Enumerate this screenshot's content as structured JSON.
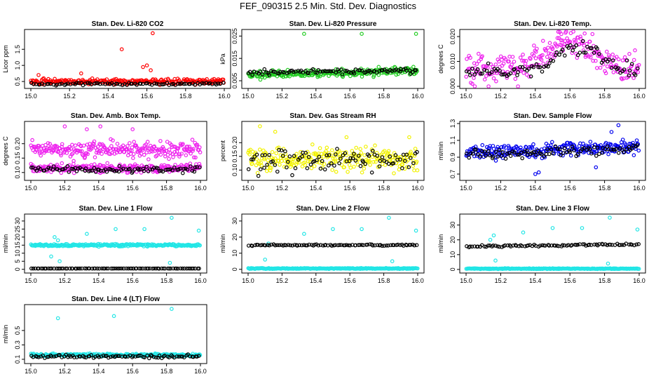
{
  "figure_title": "FEF_090315  2.5 Min. Std. Dev. Diagnostics",
  "colors": {
    "black": "#000000",
    "red": "#ff0000",
    "green": "#22cc22",
    "magenta": "#ee22ee",
    "yellow": "#f2f200",
    "blue": "#0000ee",
    "cyan": "#22e6e6"
  },
  "chart_data": [
    {
      "type": "scatter",
      "title": "Stan. Dev. Li-820 CO2",
      "xlabel": "",
      "ylabel": "Licor ppm",
      "xlim": [
        15.0,
        16.0
      ],
      "ylim": [
        0.35,
        2.05
      ],
      "x_ticks": [
        "15.0",
        "15.2",
        "15.4",
        "15.6",
        "15.8",
        "16.0"
      ],
      "y_ticks": [
        "0.5",
        "1.0",
        "1.5"
      ],
      "series": [
        {
          "name": "primary",
          "color": "red",
          "base": 0.5,
          "spread": 0.06,
          "rising": 0,
          "outliers": [
            [
              15.63,
              2.0
            ],
            [
              15.47,
              1.5
            ],
            [
              15.6,
              1.0
            ],
            [
              15.58,
              0.95
            ],
            [
              15.62,
              0.85
            ],
            [
              15.04,
              0.7
            ],
            [
              15.26,
              0.75
            ]
          ]
        },
        {
          "name": "secondary",
          "color": "black",
          "base": 0.42,
          "spread": 0.03,
          "rising": 0,
          "outliers": []
        }
      ]
    },
    {
      "type": "scatter",
      "title": "Stan. Dev. Li-820 Pressure",
      "xlabel": "",
      "ylabel": "kPa",
      "xlim": [
        15.0,
        16.0
      ],
      "ylim": [
        0.0025,
        0.027
      ],
      "x_ticks": [
        "15.0",
        "15.2",
        "15.4",
        "15.6",
        "15.8",
        "16.0"
      ],
      "y_ticks": [
        "0.005",
        "0.015",
        "0.025"
      ],
      "series": [
        {
          "name": "primary",
          "color": "green",
          "base": 0.0075,
          "spread": 0.0012,
          "rising": 0.002,
          "outliers": [
            [
              15.33,
              0.026
            ],
            [
              15.67,
              0.026
            ],
            [
              15.99,
              0.026
            ],
            [
              15.77,
              0.0112
            ]
          ]
        },
        {
          "name": "secondary",
          "color": "black",
          "base": 0.0085,
          "spread": 0.0008,
          "rising": 0.001,
          "outliers": []
        }
      ]
    },
    {
      "type": "scatter",
      "title": "Stan. Dev. Li-820 Temp.",
      "xlabel": "",
      "ylabel": "degrees C",
      "xlim": [
        15.0,
        16.0
      ],
      "ylim": [
        0.0,
        0.022
      ],
      "x_ticks": [
        "15.0",
        "15.2",
        "15.4",
        "15.6",
        "15.8",
        "16.0"
      ],
      "y_ticks": [
        "0.000",
        "0.010",
        "0.020"
      ],
      "series": [
        {
          "name": "primary",
          "color": "magenta",
          "base": 0.007,
          "spread": 0.004,
          "hump": [
            15.6,
            0.011
          ],
          "outliers": [
            [
              15.05,
              0.0
            ],
            [
              15.13,
              0.0
            ],
            [
              15.3,
              0.0
            ],
            [
              15.55,
              0.021
            ],
            [
              15.73,
              0.021
            ]
          ]
        },
        {
          "name": "secondary",
          "color": "black",
          "base": 0.006,
          "spread": 0.002,
          "hump": [
            15.65,
            0.01
          ],
          "outliers": []
        }
      ]
    },
    {
      "type": "scatter",
      "title": "Stan. Dev. Amb. Box Temp.",
      "xlabel": "",
      "ylabel": "degrees C",
      "xlim": [
        15.0,
        16.0
      ],
      "ylim": [
        0.08,
        0.27
      ],
      "x_ticks": [
        "15.0",
        "15.2",
        "15.4",
        "15.6",
        "15.8",
        "16.0"
      ],
      "y_ticks": [
        "0.10",
        "0.15",
        "0.20"
      ],
      "series": [
        {
          "name": "primary",
          "color": "magenta",
          "base": 0.18,
          "spread": 0.02,
          "rising": 0,
          "outliers": [
            [
              15.2,
              0.26
            ],
            [
              15.33,
              0.25
            ],
            [
              15.41,
              0.26
            ],
            [
              15.6,
              0.25
            ]
          ]
        },
        {
          "name": "secondary-band",
          "color": "magenta",
          "base": 0.115,
          "spread": 0.01,
          "rising": 0,
          "outliers": []
        },
        {
          "name": "secondary",
          "color": "black",
          "base": 0.11,
          "spread": 0.008,
          "rising": 0,
          "outliers": []
        }
      ]
    },
    {
      "type": "scatter",
      "title": "Stan. Dev. Gas Stream RH",
      "xlabel": "",
      "ylabel": "percent",
      "xlim": [
        15.0,
        16.0
      ],
      "ylim": [
        0.07,
        0.27
      ],
      "x_ticks": [
        "15.0",
        "15.2",
        "15.4",
        "15.6",
        "15.8",
        "16.0"
      ],
      "y_ticks": [
        "0.10",
        "0.15",
        "0.20"
      ],
      "series": [
        {
          "name": "primary",
          "color": "yellow",
          "base": 0.14,
          "spread": 0.03,
          "rising": 0,
          "outliers": [
            [
              15.07,
              0.26
            ],
            [
              15.16,
              0.24
            ],
            [
              15.58,
              0.22
            ],
            [
              15.95,
              0.22
            ]
          ]
        },
        {
          "name": "secondary",
          "color": "black",
          "base": 0.14,
          "spread": 0.03,
          "rising": 0,
          "outliers": []
        }
      ]
    },
    {
      "type": "scatter",
      "title": "Stan. Dev. Sample Flow",
      "xlabel": "",
      "ylabel": "ml/min",
      "xlim": [
        15.0,
        16.0
      ],
      "ylim": [
        0.65,
        1.3
      ],
      "x_ticks": [
        "15.0",
        "15.2",
        "15.4",
        "15.6",
        "15.8",
        "16.0"
      ],
      "y_ticks": [
        "0.7",
        "0.9",
        "1.1",
        "1.3"
      ],
      "series": [
        {
          "name": "primary",
          "color": "blue",
          "base": 0.95,
          "spread": 0.06,
          "rising": 0.08,
          "outliers": [
            [
              15.4,
              0.7
            ],
            [
              15.42,
              0.72
            ],
            [
              15.75,
              0.78
            ],
            [
              15.88,
              1.28
            ],
            [
              15.84,
              1.2
            ]
          ]
        },
        {
          "name": "secondary",
          "color": "black",
          "base": 0.93,
          "spread": 0.05,
          "rising": 0.06,
          "outliers": []
        }
      ]
    },
    {
      "type": "scatter",
      "title": "Stan. Dev. Line 1 Flow",
      "xlabel": "",
      "ylabel": "ml/min",
      "xlim": [
        15.0,
        16.0
      ],
      "ylim": [
        -1,
        33
      ],
      "x_ticks": [
        "15.0",
        "15.2",
        "15.4",
        "15.6",
        "15.8",
        "16.0"
      ],
      "y_ticks": [
        "0",
        "5",
        "10",
        "15",
        "20",
        "25",
        "30"
      ],
      "series": [
        {
          "name": "primary",
          "color": "cyan",
          "base": 15.0,
          "spread": 0.5,
          "rising": 0,
          "outliers": [
            [
              15.83,
              32
            ],
            [
              15.5,
              25
            ],
            [
              15.67,
              25
            ],
            [
              15.99,
              24
            ],
            [
              15.33,
              22
            ],
            [
              15.14,
              20
            ],
            [
              15.16,
              18
            ],
            [
              15.12,
              8
            ],
            [
              15.82,
              4
            ],
            [
              15.17,
              5
            ]
          ]
        },
        {
          "name": "secondary",
          "color": "black",
          "base": 0.5,
          "spread": 0.05,
          "rising": 0,
          "outliers": []
        }
      ]
    },
    {
      "type": "scatter",
      "title": "Stan. Dev. Line 2 Flow",
      "xlabel": "",
      "ylabel": "ml/min",
      "xlim": [
        15.0,
        16.0
      ],
      "ylim": [
        -1,
        33
      ],
      "x_ticks": [
        "15.0",
        "15.2",
        "15.4",
        "15.6",
        "15.8",
        "16.0"
      ],
      "y_ticks": [
        "0",
        "10",
        "20",
        "30"
      ],
      "series": [
        {
          "name": "primary",
          "color": "cyan",
          "base": 0.5,
          "spread": 0.2,
          "rising": 0,
          "outliers": [
            [
              15.83,
              32
            ],
            [
              15.5,
              25
            ],
            [
              15.67,
              25
            ],
            [
              15.99,
              24
            ],
            [
              15.33,
              22
            ],
            [
              15.12,
              16
            ],
            [
              15.1,
              6
            ],
            [
              15.85,
              5
            ]
          ]
        },
        {
          "name": "secondary",
          "color": "black",
          "base": 15.0,
          "spread": 0.3,
          "rising": 0,
          "outliers": []
        }
      ]
    },
    {
      "type": "scatter",
      "title": "Stan. Dev. Line 3 Flow",
      "xlabel": "",
      "ylabel": "ml/min",
      "xlim": [
        15.0,
        16.0
      ],
      "ylim": [
        -1,
        36
      ],
      "x_ticks": [
        "15.0",
        "15.2",
        "15.4",
        "15.6",
        "15.8",
        "16.0"
      ],
      "y_ticks": [
        "0",
        "10",
        "20",
        "30"
      ],
      "series": [
        {
          "name": "primary",
          "color": "cyan",
          "base": 0.5,
          "spread": 0.2,
          "rising": 0,
          "outliers": [
            [
              15.83,
              35
            ],
            [
              15.5,
              28
            ],
            [
              15.67,
              28
            ],
            [
              15.99,
              27
            ],
            [
              15.33,
              25
            ],
            [
              15.16,
              23
            ],
            [
              15.14,
              20
            ],
            [
              15.17,
              6
            ],
            [
              15.82,
              4
            ]
          ]
        },
        {
          "name": "secondary",
          "color": "black",
          "base": 15.5,
          "spread": 0.4,
          "rising": 1.5,
          "outliers": []
        }
      ]
    },
    {
      "type": "scatter",
      "title": "Stan. Dev. Line 4 (LT) Flow",
      "xlabel": "",
      "ylabel": "ml/min",
      "xlim": [
        15.0,
        16.0
      ],
      "ylim": [
        0.07,
        0.83
      ],
      "x_ticks": [
        "15.0",
        "15.2",
        "15.4",
        "15.6",
        "15.8",
        "16.0"
      ],
      "y_ticks": [
        "0.1",
        "0.3",
        "0.5"
      ],
      "series": [
        {
          "name": "primary",
          "color": "cyan",
          "base": 0.16,
          "spread": 0.015,
          "rising": 0,
          "outliers": [
            [
              15.83,
              0.8
            ],
            [
              15.49,
              0.7
            ],
            [
              15.16,
              0.67
            ]
          ]
        },
        {
          "name": "secondary",
          "color": "black",
          "base": 0.14,
          "spread": 0.015,
          "rising": 0,
          "outliers": []
        }
      ]
    }
  ]
}
